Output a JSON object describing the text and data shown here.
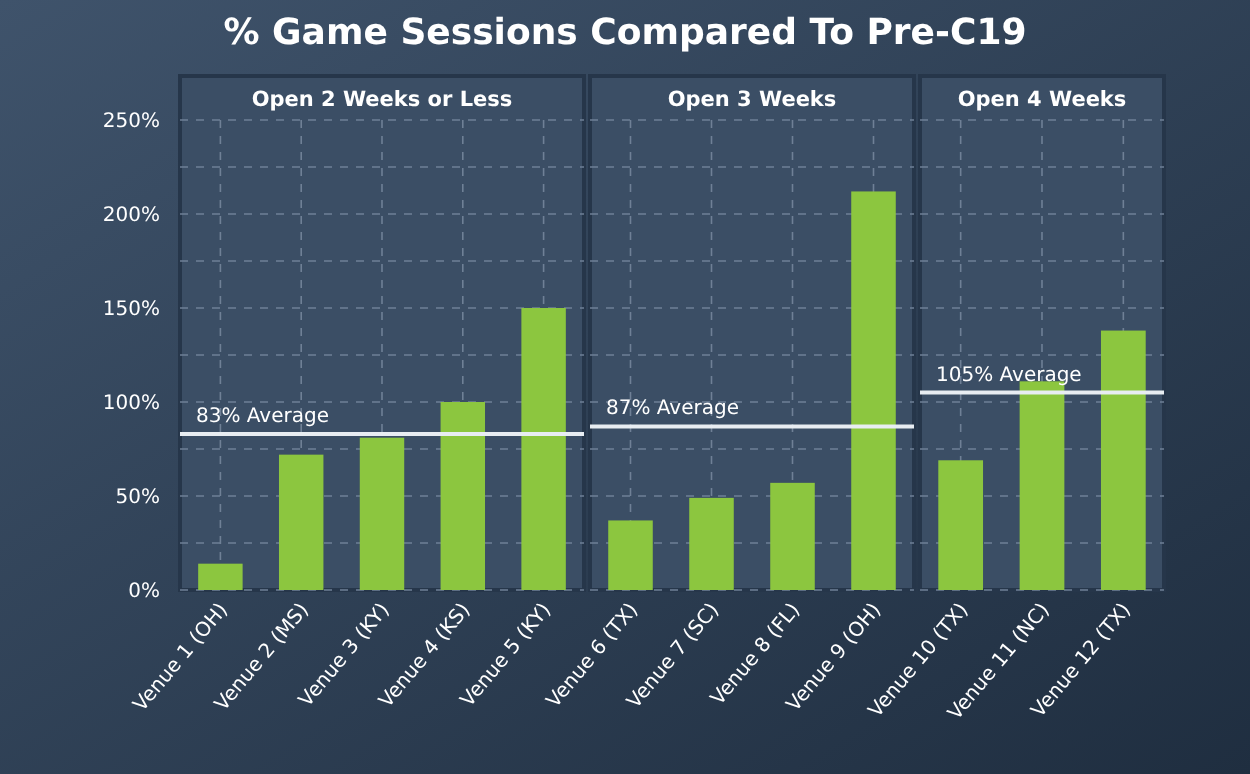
{
  "chart_data": [
    {
      "type": "bar",
      "title": "% Game Sessions Compared To Pre-C19",
      "subtitle": "Open 2 Weeks or Less",
      "categories": [
        "Venue 1 (OH)",
        "Venue 2 (MS)",
        "Venue 3 (KY)",
        "Venue 4 (KS)",
        "Venue 5 (KY)"
      ],
      "values": [
        14,
        72,
        81,
        100,
        150
      ],
      "color": "#8cc63f",
      "ylim": [
        0,
        250
      ],
      "yticks": [
        {
          "value": 0,
          "label": "0%"
        },
        {
          "value": 25,
          "label": null
        },
        {
          "value": 50,
          "label": "50%"
        },
        {
          "value": 75,
          "label": null
        },
        {
          "value": 100,
          "label": "100%"
        },
        {
          "value": 125,
          "label": null
        },
        {
          "value": 150,
          "label": "150%"
        },
        {
          "value": 175,
          "label": null
        },
        {
          "value": 200,
          "label": "200%"
        },
        {
          "value": 225,
          "label": null
        },
        {
          "value": 250,
          "label": "250%"
        }
      ],
      "grid": true,
      "ref_lines": [
        {
          "axis": "y",
          "value": 83,
          "label": "83% Average",
          "color": "#e8edf2"
        }
      ]
    },
    {
      "type": "bar",
      "subtitle": "Open 3 Weeks",
      "categories": [
        "Venue 6 (TX)",
        "Venue 7 (SC)",
        "Venue 8 (FL)",
        "Venue 9 (OH)"
      ],
      "values": [
        37,
        49,
        57,
        212
      ],
      "color": "#8cc63f",
      "ylim": [
        0,
        250
      ],
      "yticks": [
        0,
        25,
        50,
        75,
        100,
        125,
        150,
        175,
        200,
        225,
        250
      ],
      "grid": true,
      "tick_labels": "x",
      "ref_lines": [
        {
          "axis": "y",
          "value": 87,
          "label": "87% Average",
          "color": "#e8edf2"
        }
      ]
    },
    {
      "type": "bar",
      "subtitle": "Open 4 Weeks",
      "categories": [
        "Venue 10 (TX)",
        "Venue 11 (NC)",
        "Venue 12 (TX)"
      ],
      "values": [
        69,
        111,
        138
      ],
      "color": "#8cc63f",
      "ylim": [
        0,
        250
      ],
      "yticks": [
        0,
        25,
        50,
        75,
        100,
        125,
        150,
        175,
        200,
        225,
        250
      ],
      "grid": true,
      "tick_labels": "x",
      "ref_lines": [
        {
          "axis": "y",
          "value": 105,
          "label": "105% Average",
          "color": "#e8edf2"
        }
      ]
    }
  ]
}
